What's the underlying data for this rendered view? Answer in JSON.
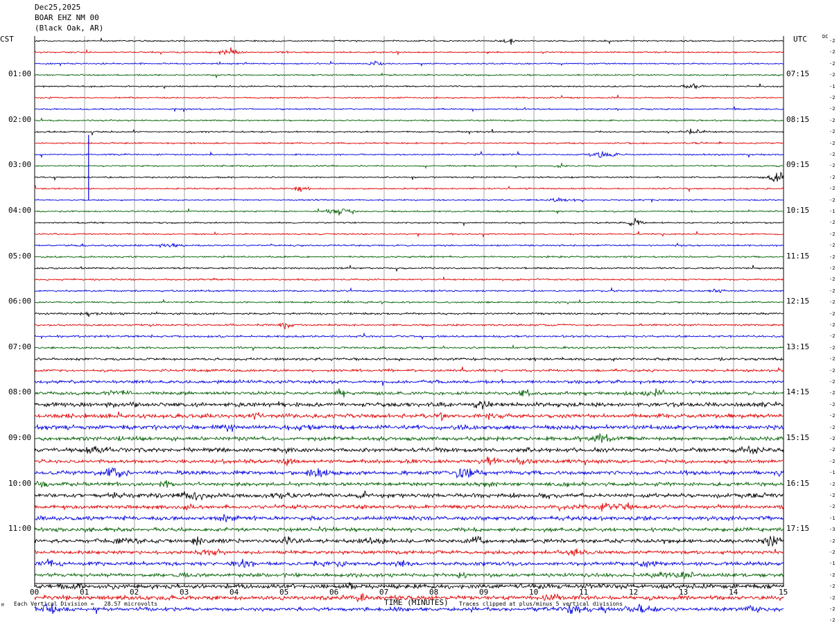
{
  "header": {
    "date": "Dec25,2025",
    "station": "BOAR EHZ NM 00",
    "location": "(Black Oak, AR)"
  },
  "left_tz": "CST",
  "right_tz": "UTC",
  "dc_label": "DC",
  "footer": {
    "scale": "Each Vertical Division =   28.57 microvolts",
    "clip": "Traces clipped at plus/minus 5 vertical divisions",
    "corner_mark": "M"
  },
  "colors": {
    "trace": [
      "#000000",
      "#e00000",
      "#0000e0",
      "#006000"
    ],
    "grid": "#808080"
  },
  "chart_data": {
    "type": "line",
    "xlabel": "TIME (MINUTES)",
    "xlim": [
      0,
      15
    ],
    "x_ticks": [
      "00",
      "01",
      "02",
      "03",
      "04",
      "05",
      "06",
      "07",
      "08",
      "09",
      "10",
      "11",
      "12",
      "13",
      "14",
      "15"
    ],
    "trace_interval_minutes": 15,
    "left_hour_labels": [
      "01:00",
      "02:00",
      "03:00",
      "04:00",
      "05:00",
      "06:00",
      "07:00",
      "08:00",
      "09:00",
      "10:00",
      "11:00"
    ],
    "right_hour_labels": [
      "07:15",
      "08:15",
      "09:15",
      "10:15",
      "11:15",
      "12:15",
      "13:15",
      "14:15",
      "15:15",
      "16:15",
      "17:15"
    ],
    "dc_offsets": [
      "-2",
      "-2",
      "-2",
      "-2",
      "-1",
      "-2",
      "-2",
      "-2",
      "-2",
      "-2",
      "-2",
      "-2",
      "-2",
      "-2",
      "-2",
      "-1",
      "-2",
      "-2",
      "-2",
      "-2",
      "-2",
      "-2",
      "-2",
      "-2",
      "-2",
      "-2",
      "-2",
      "-2",
      "-2",
      "-2",
      "-2",
      "-2",
      "-2",
      "-2",
      "-2",
      "-2",
      "-2",
      "-2",
      "-1",
      "-2",
      "-2",
      "-2",
      "-1",
      "-3",
      "-2",
      "-2",
      "-1",
      "-2",
      "-2",
      "-2",
      "-2",
      "-2"
    ],
    "activity": [
      0.6,
      0.6,
      0.6,
      0.6,
      0.6,
      0.6,
      0.6,
      0.6,
      0.6,
      0.6,
      0.6,
      0.6,
      0.6,
      0.6,
      0.6,
      0.6,
      0.6,
      0.6,
      0.7,
      0.7,
      0.7,
      0.7,
      0.7,
      0.7,
      0.8,
      0.8,
      0.8,
      0.8,
      1.0,
      1.0,
      1.2,
      1.3,
      1.8,
      1.7,
      1.8,
      1.6,
      1.7,
      1.5,
      1.6,
      1.5,
      1.7,
      1.6,
      1.7,
      1.5,
      1.6,
      1.4,
      1.5,
      1.5,
      1.8,
      1.7,
      1.5,
      1.4
    ]
  }
}
